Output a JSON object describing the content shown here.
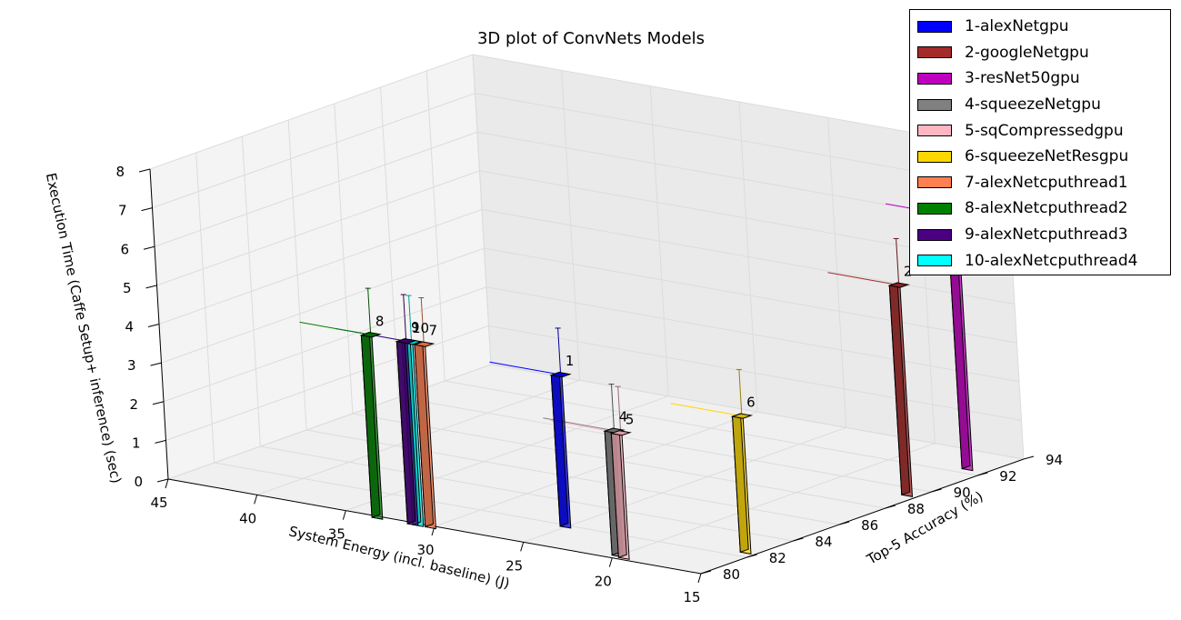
{
  "chart_data": {
    "type": "bar3d",
    "title": "3D plot of ConvNets Models",
    "xlabel": "System Energy (incl. baseline) (J)",
    "ylabel": "Top-5 Accuracy (%)",
    "zlabel": "Execution Time (Caffe Setup+ inference) (sec)",
    "xlim": [
      45,
      15
    ],
    "ylim": [
      80,
      94
    ],
    "zlim": [
      0,
      8
    ],
    "x_ticks": [
      45,
      40,
      35,
      30,
      25,
      20,
      15
    ],
    "y_ticks": [
      80,
      82,
      84,
      86,
      88,
      90,
      92,
      94
    ],
    "z_ticks": [
      0,
      1,
      2,
      3,
      4,
      5,
      6,
      7,
      8
    ],
    "grid": true,
    "legend_position": "top-right",
    "models": [
      {
        "id": "1",
        "name": "1-alexNetgpu",
        "energy": 25,
        "accuracy": 82,
        "time": 3.9,
        "color": "#0000ff"
      },
      {
        "id": "2",
        "name": "2-googleNetgpu",
        "energy": 15.5,
        "accuracy": 89.5,
        "time": 5.4,
        "color": "#a52a2a"
      },
      {
        "id": "3",
        "name": "3-resNet50gpu",
        "energy": 16,
        "accuracy": 92.5,
        "time": 6.5,
        "color": "#bf00bf"
      },
      {
        "id": "4",
        "name": "4-squeezeNetgpu",
        "energy": 20,
        "accuracy": 80.4,
        "time": 3.2,
        "color": "#808080"
      },
      {
        "id": "5",
        "name": "5-sqCompressedgpu",
        "energy": 19.5,
        "accuracy": 80.3,
        "time": 3.2,
        "color": "#ffb6c1"
      },
      {
        "id": "6",
        "name": "6-squeezeNetResgpu",
        "energy": 15.5,
        "accuracy": 82.5,
        "time": 3.5,
        "color": "#ffd700"
      },
      {
        "id": "7",
        "name": "7-alexNetcputhread1",
        "energy": 30,
        "accuracy": 80,
        "time": 4.7,
        "color": "#ff7f50"
      },
      {
        "id": "8",
        "name": "8-alexNetcputhread2",
        "energy": 33,
        "accuracy": 80,
        "time": 4.7,
        "color": "#008000"
      },
      {
        "id": "9",
        "name": "9-alexNetcputhread3",
        "energy": 31,
        "accuracy": 80,
        "time": 4.7,
        "color": "#4b0082"
      },
      {
        "id": "10",
        "name": "10-alexNetcputhread4",
        "energy": 30.7,
        "accuracy": 80,
        "time": 4.7,
        "color": "#00ffff"
      }
    ]
  }
}
